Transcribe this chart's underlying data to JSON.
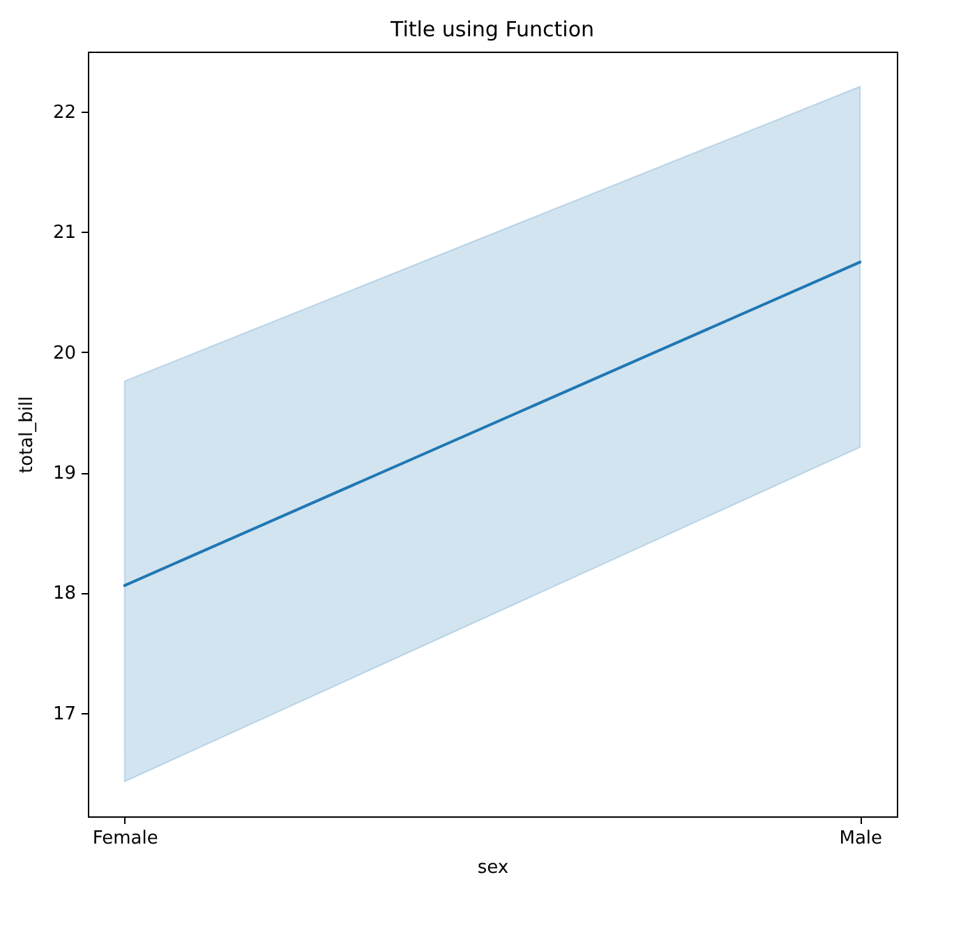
{
  "chart_data": {
    "type": "line",
    "title": "Title using Function",
    "xlabel": "sex",
    "ylabel": "total_bill",
    "categories": [
      "Female",
      "Male"
    ],
    "series": [
      {
        "color": "#1f77b4",
        "values": [
          18.06,
          20.75
        ],
        "lower": [
          16.43,
          19.21
        ],
        "upper": [
          19.76,
          22.21
        ]
      }
    ],
    "ylim": [
      16.14,
      22.5
    ],
    "yticks": [
      17,
      18,
      19,
      20,
      21,
      22
    ]
  }
}
